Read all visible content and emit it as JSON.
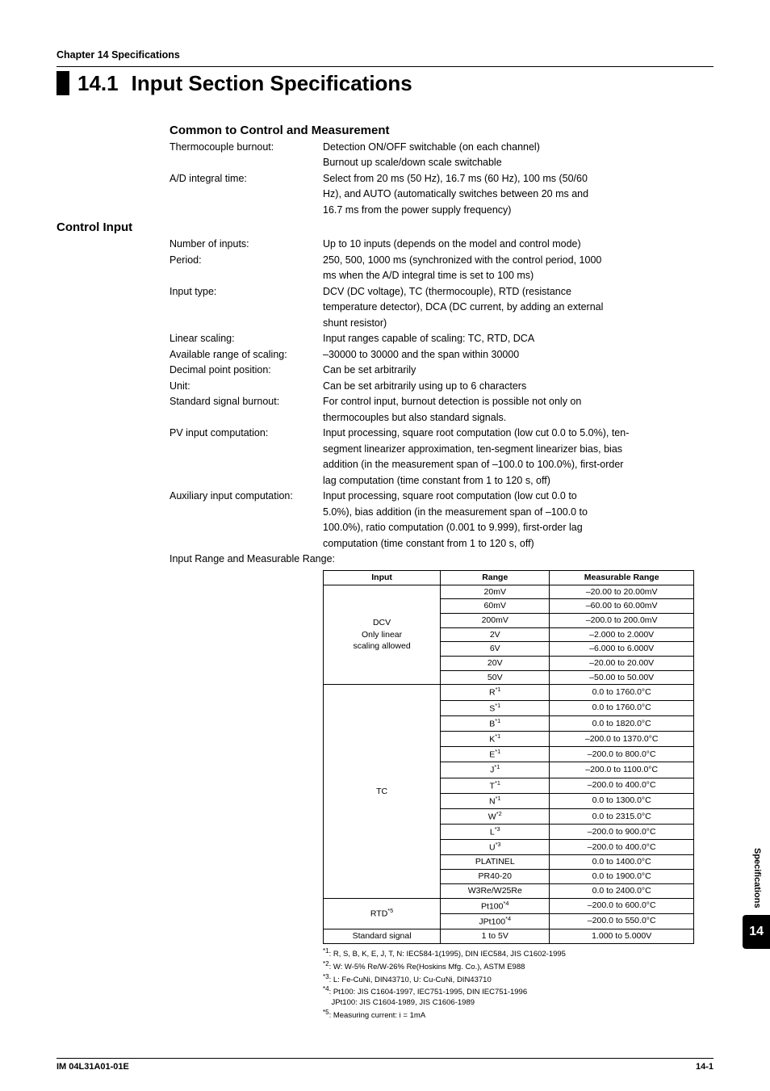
{
  "chapter_header": "Chapter 14 Specifications",
  "title_number": "14.1",
  "title_text": "Input Section Specifications",
  "subhead_common": "Common to Control and Measurement",
  "common_rows": [
    {
      "label": "Thermocouple burnout:",
      "value": "Detection ON/OFF switchable (on each channel)"
    },
    {
      "label": "",
      "value": "Burnout up scale/down scale switchable"
    },
    {
      "label": "A/D integral time:",
      "value": "Select from 20 ms (50 Hz), 16.7 ms (60 Hz), 100 ms (50/60"
    },
    {
      "label": "",
      "value": "Hz), and AUTO (automatically switches between 20 ms and"
    },
    {
      "label": "",
      "value": "16.7 ms from the power supply frequency)"
    }
  ],
  "section_control": "Control Input",
  "control_rows": [
    {
      "label": "Number of inputs:",
      "value": "Up to 10 inputs (depends on the model and control mode)"
    },
    {
      "label": "Period:",
      "value": "250, 500, 1000 ms (synchronized with the control period, 1000"
    },
    {
      "label": "",
      "value": "ms when the A/D integral time is set to 100 ms)"
    },
    {
      "label": "Input type:",
      "value": "DCV (DC voltage), TC (thermocouple), RTD (resistance"
    },
    {
      "label": "",
      "value": "temperature detector), DCA (DC current, by adding an external"
    },
    {
      "label": "",
      "value": "shunt resistor)"
    },
    {
      "label": "Linear scaling:",
      "value": "Input ranges capable of scaling: TC, RTD, DCA"
    },
    {
      "label": "Available range of scaling:",
      "value": "–30000 to 30000 and the span within 30000"
    },
    {
      "label": "Decimal point position:",
      "value": "Can be set arbitrarily"
    },
    {
      "label": "Unit:",
      "value": "Can be set arbitrarily using up to 6 characters"
    },
    {
      "label": "Standard signal burnout:",
      "value": "For control input, burnout detection is possible not only on"
    },
    {
      "label": "",
      "value": "thermocouples but also standard signals."
    },
    {
      "label": "PV input computation:",
      "value": "Input processing, square root computation (low cut 0.0 to 5.0%), ten-"
    },
    {
      "label": "",
      "value": "segment linearizer approximation, ten-segment linearizer bias, bias"
    },
    {
      "label": "",
      "value": "addition (in the measurement span of –100.0 to 100.0%), first-order"
    },
    {
      "label": "",
      "value": "lag computation (time constant from 1 to 120 s, off)"
    },
    {
      "label": "Auxiliary input computation:",
      "value": "Input processing, square root computation (low cut 0.0 to"
    },
    {
      "label": "",
      "value": "5.0%), bias addition (in the measurement span of –100.0 to"
    },
    {
      "label": "",
      "value": "100.0%), ratio computation (0.001 to 9.999), first-order lag"
    },
    {
      "label": "",
      "value": "computation (time constant from 1 to 120 s, off)"
    }
  ],
  "table_caption": "Input Range and Measurable Range:",
  "table": {
    "headers": [
      "Input",
      "Range",
      "Measurable Range"
    ],
    "rows": [
      {
        "input": "DCV\nOnly linear\nscaling allowed",
        "span": 7,
        "ranges": [
          [
            "20mV",
            "–20.00 to 20.00mV"
          ],
          [
            "60mV",
            "–60.00 to 60.00mV"
          ],
          [
            "200mV",
            "–200.0 to 200.0mV"
          ],
          [
            "2V",
            "–2.000 to 2.000V"
          ],
          [
            "6V",
            "–6.000 to 6.000V"
          ],
          [
            "20V",
            "–20.00 to 20.00V"
          ],
          [
            "50V",
            "–50.00 to 50.00V"
          ]
        ]
      },
      {
        "input": "TC",
        "span": 14,
        "ranges": [
          [
            "R*1",
            "0.0 to 1760.0°C"
          ],
          [
            "S*1",
            "0.0 to 1760.0°C"
          ],
          [
            "B*1",
            "0.0 to 1820.0°C"
          ],
          [
            "K*1",
            "–200.0 to 1370.0°C"
          ],
          [
            "E*1",
            "–200.0 to 800.0°C"
          ],
          [
            "J*1",
            "–200.0 to 1100.0°C"
          ],
          [
            "T*1",
            "–200.0 to 400.0°C"
          ],
          [
            "N*1",
            "0.0 to 1300.0°C"
          ],
          [
            "W*2",
            "0.0 to 2315.0°C"
          ],
          [
            "L*3",
            "–200.0 to 900.0°C"
          ],
          [
            "U*3",
            "–200.0 to 400.0°C"
          ],
          [
            "PLATINEL",
            "0.0 to 1400.0°C"
          ],
          [
            "PR40-20",
            "0.0 to 1900.0°C"
          ],
          [
            "W3Re/W25Re",
            "0.0 to 2400.0°C"
          ]
        ]
      },
      {
        "input": "RTD*5",
        "span": 2,
        "ranges": [
          [
            "Pt100*4",
            "–200.0 to 600.0°C"
          ],
          [
            "JPt100*4",
            "–200.0 to 550.0°C"
          ]
        ]
      },
      {
        "input": "Standard signal",
        "span": 1,
        "ranges": [
          [
            "1 to 5V",
            "1.000 to 5.000V"
          ]
        ]
      }
    ]
  },
  "footnotes": [
    "*1: R, S, B, K, E, J, T, N: IEC584-1(1995), DIN IEC584, JIS C1602-1995",
    "*2: W: W-5% Re/W-26% Re(Hoskins Mfg. Co.), ASTM E988",
    "*3: L:  Fe-CuNi, DIN43710, U: Cu-CuNi, DIN43710",
    "*4: Pt100:   JIS C1604-1997, IEC751-1995, DIN IEC751-1996",
    "    JPt100: JIS C1604-1989, JIS C1606-1989",
    "*5: Measuring current: i = 1mA"
  ],
  "side_label": "Specifications",
  "side_number": "14",
  "footer_left": "IM 04L31A01-01E",
  "footer_right": "14-1"
}
